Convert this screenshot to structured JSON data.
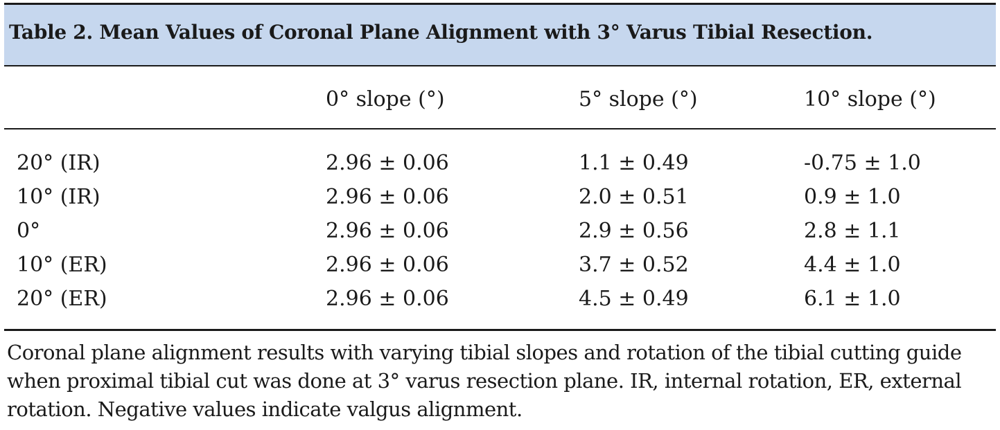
{
  "table": {
    "title": "Table 2. Mean Values of Coronal Plane Alignment with 3° Varus Tibial Resection.",
    "header": [
      "",
      "0° slope (°)",
      "5° slope (°)",
      "10° slope (°)"
    ],
    "rows": [
      [
        "20° (IR)",
        "2.96 ± 0.06",
        "1.1 ± 0.49",
        "-0.75 ± 1.0"
      ],
      [
        "10° (IR)",
        "2.96 ± 0.06",
        "2.0 ± 0.51",
        "0.9 ± 1.0"
      ],
      [
        "0°",
        "2.96 ± 0.06",
        "2.9 ± 0.56",
        "2.8 ± 1.1"
      ],
      [
        "10° (ER)",
        "2.96 ± 0.06",
        "3.7 ± 0.52",
        "4.4 ± 1.0"
      ],
      [
        "20° (ER)",
        "2.96 ± 0.06",
        "4.5 ± 0.49",
        "6.1 ± 1.0"
      ]
    ],
    "caption": "Coronal plane alignment results with varying tibial slopes and rotation of the tibial cutting guide when proximal tibial cut was done at 3° varus resection plane. IR, internal rotation, ER, external rotation. Negative values indicate valgus alignment.",
    "colors": {
      "title_band": "#c6d7ee",
      "rule": "#1a1a1a",
      "text": "#1a1a1a"
    }
  }
}
